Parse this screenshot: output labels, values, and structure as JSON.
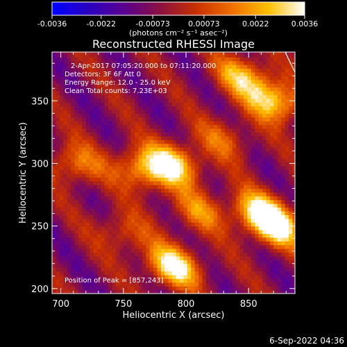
{
  "chart_data": {
    "type": "heatmap",
    "title": "Reconstructed RHESSI Image",
    "xlabel": "Heliocentric X (arcsec)",
    "ylabel": "Heliocentric Y (arcsec)",
    "xlim": [
      693,
      887
    ],
    "ylim": [
      196,
      389
    ],
    "x_ticks": [
      700,
      750,
      800,
      850
    ],
    "y_ticks": [
      200,
      250,
      300,
      350
    ],
    "x_tick_labels": [
      "700",
      "750",
      "800",
      "850"
    ],
    "y_tick_labels": [
      "200",
      "250",
      "300",
      "350"
    ],
    "colorbar": {
      "ticks": [
        -0.0036,
        -0.0022,
        -0.00073,
        0.00073,
        0.0022,
        0.0036
      ],
      "tick_labels": [
        "-0.0036",
        "-0.0022",
        "-0.00073",
        "0.00073",
        "0.0022",
        "0.0036"
      ],
      "unit_label": "(photons cm⁻² s⁻¹ asec⁻²)",
      "range": [
        -0.0036,
        0.0036
      ],
      "colormap": [
        "#0000ff",
        "#2a00c0",
        "#5a0090",
        "#8c1040",
        "#c83000",
        "#f07000",
        "#ffc000",
        "#ffffff"
      ]
    },
    "annotations": [
      "2-Apr-2017 07:05:20.000 to 07:11:20.000",
      "Detectors: 3F 6F   Att 0",
      "Energy Range: 12.0 - 25.0 keV",
      "Clean     Total counts: 7.23E+03"
    ],
    "peak_label": "Position of Peak = [857,243]",
    "emission_regions": [
      {
        "x": 790,
        "y": 218,
        "peak": 0.0036
      },
      {
        "x": 872,
        "y": 250,
        "peak": 0.0034
      },
      {
        "x": 858,
        "y": 262,
        "peak": 0.0028
      },
      {
        "x": 790,
        "y": 300,
        "peak": 0.0033
      },
      {
        "x": 765,
        "y": 295,
        "peak": 0.0025
      },
      {
        "x": 712,
        "y": 300,
        "peak": 0.002
      },
      {
        "x": 870,
        "y": 350,
        "peak": 0.0032
      },
      {
        "x": 845,
        "y": 370,
        "peak": 0.0026
      },
      {
        "x": 750,
        "y": 245,
        "peak": 0.0014
      },
      {
        "x": 810,
        "y": 262,
        "peak": 0.0018
      },
      {
        "x": 830,
        "y": 320,
        "peak": 0.0015
      }
    ],
    "background_level": -0.0006
  },
  "footer": {
    "date": "6-Sep-2022 04:36"
  }
}
